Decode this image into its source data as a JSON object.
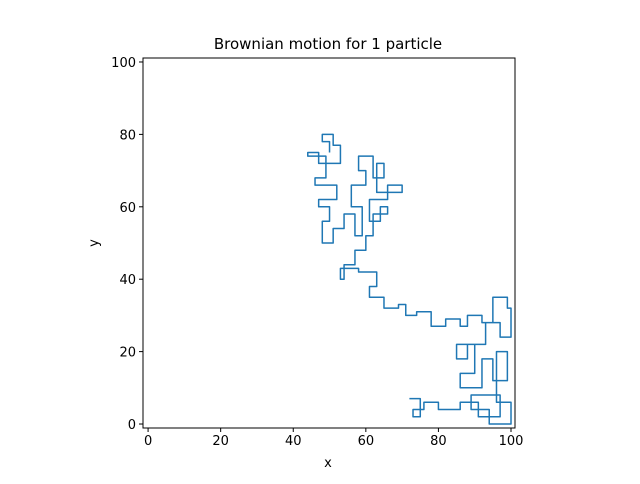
{
  "chart_data": {
    "type": "line",
    "title": "Brownian motion for 1 particle",
    "xlabel": "x",
    "ylabel": "y",
    "color": "#1f77b4",
    "x": [
      50,
      50,
      48,
      48,
      51,
      51,
      53,
      53,
      47,
      47,
      44,
      44,
      49,
      49,
      46,
      46,
      52,
      52,
      47,
      47,
      50,
      50,
      48,
      48,
      51,
      51,
      54,
      54,
      57,
      57,
      59,
      59,
      56,
      56,
      60,
      60,
      58,
      58,
      62,
      62,
      65,
      65,
      63,
      63,
      70,
      70,
      66,
      66,
      61,
      61,
      64,
      64,
      66,
      66,
      62,
      62,
      60,
      60,
      57,
      57,
      54,
      54,
      53,
      53,
      58,
      58,
      63,
      63,
      61,
      61,
      65,
      65,
      69,
      69,
      71,
      71,
      74,
      74,
      78,
      78,
      82,
      82,
      86,
      86,
      88,
      88,
      92,
      92,
      95,
      95,
      99,
      99,
      100,
      100,
      97,
      97,
      93,
      93,
      88,
      88,
      85,
      85,
      90,
      90,
      86,
      86,
      92,
      92,
      95,
      95,
      99,
      99,
      96,
      96,
      100,
      100,
      94,
      94,
      89,
      89,
      97,
      97,
      91,
      91,
      86,
      86,
      80,
      80,
      76,
      76,
      73,
      73,
      75,
      75,
      72
    ],
    "values": [
      75,
      78,
      78,
      80,
      80,
      77,
      77,
      72,
      72,
      75,
      75,
      74,
      74,
      68,
      68,
      66,
      66,
      62,
      62,
      60,
      60,
      56,
      56,
      50,
      50,
      54,
      54,
      58,
      58,
      52,
      52,
      60,
      60,
      66,
      66,
      70,
      70,
      74,
      74,
      68,
      68,
      72,
      72,
      64,
      64,
      66,
      66,
      62,
      62,
      56,
      56,
      60,
      60,
      58,
      58,
      52,
      52,
      48,
      48,
      44,
      44,
      40,
      40,
      43,
      43,
      42,
      42,
      38,
      38,
      35,
      35,
      32,
      32,
      33,
      33,
      30,
      30,
      31,
      31,
      27,
      27,
      29,
      29,
      27,
      27,
      30,
      30,
      28,
      28,
      35,
      35,
      32,
      32,
      24,
      24,
      28,
      28,
      22,
      22,
      18,
      18,
      22,
      22,
      14,
      14,
      10,
      10,
      18,
      18,
      12,
      12,
      20,
      20,
      6,
      6,
      0,
      0,
      4,
      4,
      8,
      8,
      2,
      2,
      6,
      6,
      4,
      4,
      6,
      6,
      4,
      4,
      2,
      2,
      7,
      7
    ],
    "xlim": [
      -1.4,
      101.1
    ],
    "ylim": [
      -1.1,
      101.1
    ],
    "xticks": [
      0,
      20,
      40,
      60,
      80,
      100
    ],
    "yticks": [
      0,
      20,
      40,
      60,
      80,
      100
    ]
  }
}
